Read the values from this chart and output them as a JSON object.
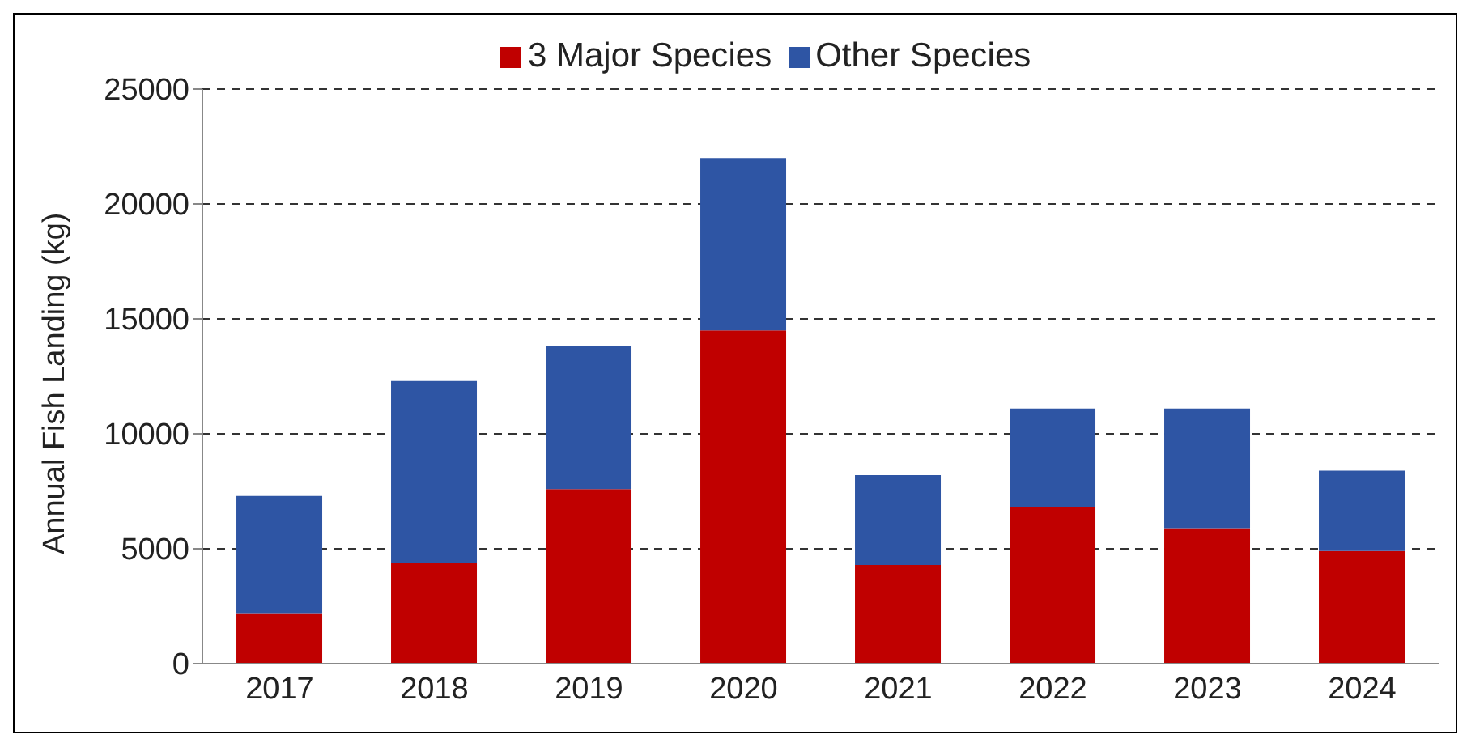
{
  "chart_data": {
    "type": "bar",
    "stacked": true,
    "ylabel": "Annual Fish Landing (kg)",
    "categories": [
      "2017",
      "2018",
      "2019",
      "2020",
      "2021",
      "2022",
      "2023",
      "2024"
    ],
    "series": [
      {
        "name": "3 Major Species",
        "color": "#c00000",
        "values": [
          2200,
          4400,
          7600,
          14500,
          4300,
          6800,
          5900,
          4900
        ]
      },
      {
        "name": "Other Species",
        "color": "#2e55a4",
        "values": [
          5100,
          7900,
          6200,
          7500,
          3900,
          4300,
          5200,
          3500
        ]
      }
    ],
    "ylim": [
      0,
      25000
    ],
    "yticks": [
      0,
      5000,
      10000,
      15000,
      20000,
      25000
    ],
    "grid": "y",
    "legend": "top"
  }
}
